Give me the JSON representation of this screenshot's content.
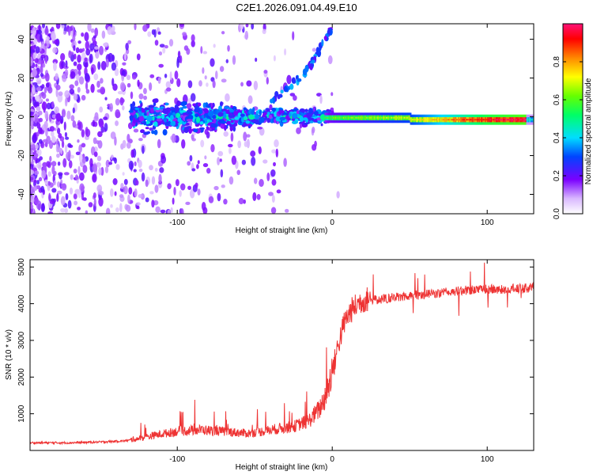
{
  "title": "C2E1.2026.091.04.49.E10",
  "chart_data": [
    {
      "type": "heatmap",
      "xlabel": "Height of straight line (km)",
      "ylabel": "Frequency (Hz)",
      "xlim": [
        -195,
        130
      ],
      "ylim": [
        -50,
        48
      ],
      "xticks": [
        -100,
        0,
        100
      ],
      "xtick_labels": [
        "-100",
        "0",
        "100"
      ],
      "yticks": [
        -40,
        -20,
        0,
        20,
        40
      ],
      "ytick_labels": [
        "-40",
        "-20",
        "0",
        "20",
        "40"
      ],
      "colorbar": {
        "label": "Normalized spectral amplitude",
        "range": [
          0,
          1
        ],
        "ticks": [
          0.0,
          0.2,
          0.4,
          0.6,
          0.8
        ],
        "tick_labels": [
          "0.0",
          "0.2",
          "0.4",
          "0.6",
          "0.8"
        ]
      },
      "description_points": [
        {
          "x": -150,
          "f": 0,
          "amp": 0.3
        },
        {
          "x": -80,
          "f": 0,
          "amp": 0.45
        },
        {
          "x": -20,
          "f": 0,
          "amp": 0.4
        },
        {
          "x": 0,
          "f": 0,
          "amp": 0.55
        },
        {
          "x": 50,
          "f": -1,
          "amp": 0.65
        },
        {
          "x": 100,
          "f": -2,
          "amp": 0.9
        },
        {
          "x": 125,
          "f": -2,
          "amp": 0.95
        }
      ],
      "sidebranch": [
        {
          "x": -40,
          "f": 8
        },
        {
          "x": -28,
          "f": 15
        },
        {
          "x": -15,
          "f": 25
        },
        {
          "x": -8,
          "f": 35
        },
        {
          "x": 0,
          "f": 46
        }
      ]
    },
    {
      "type": "line",
      "xlabel": "Height of straight line (km)",
      "ylabel": "SNR (10 * v/v)",
      "xlim": [
        -195,
        130
      ],
      "ylim": [
        0,
        5200
      ],
      "xticks": [
        -100,
        0,
        100
      ],
      "xtick_labels": [
        "-100",
        "0",
        "100"
      ],
      "yticks": [
        1000,
        2000,
        3000,
        4000,
        5000
      ],
      "ytick_labels": [
        "1000",
        "2000",
        "3000",
        "4000",
        "5000"
      ],
      "color": "#ee3333",
      "series": [
        {
          "name": "SNR",
          "x": [
            -195,
            -170,
            -150,
            -135,
            -125,
            -115,
            -100,
            -85,
            -70,
            -55,
            -45,
            -35,
            -25,
            -15,
            -8,
            -3,
            0,
            4,
            8,
            12,
            18,
            25,
            35,
            50,
            70,
            90,
            110,
            130
          ],
          "y": [
            200,
            200,
            220,
            250,
            300,
            380,
            480,
            520,
            480,
            430,
            480,
            550,
            600,
            750,
            1050,
            1500,
            2000,
            2800,
            3400,
            3700,
            3950,
            4050,
            4100,
            4180,
            4250,
            4350,
            4350,
            4400
          ]
        }
      ]
    }
  ]
}
